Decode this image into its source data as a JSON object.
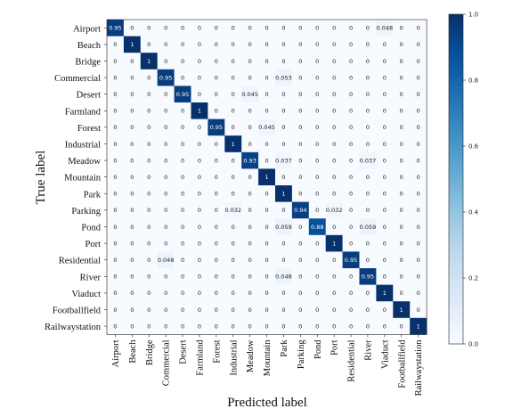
{
  "chart_data": {
    "type": "heatmap",
    "title": "",
    "xlabel": "Predicted label",
    "ylabel": "True label",
    "classes": [
      "Airport",
      "Beach",
      "Bridge",
      "Commercial",
      "Desert",
      "Farmland",
      "Forest",
      "Industrial",
      "Meadow",
      "Mountain",
      "Park",
      "Parking",
      "Pond",
      "Port",
      "Residential",
      "River",
      "Viaduct",
      "Footballfield",
      "Railwaystation"
    ],
    "matrix": [
      [
        "0.95",
        "0",
        "0",
        "0",
        "0",
        "0",
        "0",
        "0",
        "0",
        "0",
        "0",
        "0",
        "0",
        "0",
        "0",
        "0",
        "0.048",
        "0",
        "0"
      ],
      [
        "0",
        "1",
        "0",
        "0",
        "0",
        "0",
        "0",
        "0",
        "0",
        "0",
        "0",
        "0",
        "0",
        "0",
        "0",
        "0",
        "0",
        "0",
        "0"
      ],
      [
        "0",
        "0",
        "1",
        "0",
        "0",
        "0",
        "0",
        "0",
        "0",
        "0",
        "0",
        "0",
        "0",
        "0",
        "0",
        "0",
        "0",
        "0",
        "0"
      ],
      [
        "0",
        "0",
        "0",
        "0.95",
        "0",
        "0",
        "0",
        "0",
        "0",
        "0",
        "0.053",
        "0",
        "0",
        "0",
        "0",
        "0",
        "0",
        "0",
        "0"
      ],
      [
        "0",
        "0",
        "0",
        "0",
        "0.95",
        "0",
        "0",
        "0",
        "0.045",
        "0",
        "0",
        "0",
        "0",
        "0",
        "0",
        "0",
        "0",
        "0",
        "0"
      ],
      [
        "0",
        "0",
        "0",
        "0",
        "0",
        "1",
        "0",
        "0",
        "0",
        "0",
        "0",
        "0",
        "0",
        "0",
        "0",
        "0",
        "0",
        "0",
        "0"
      ],
      [
        "0",
        "0",
        "0",
        "0",
        "0",
        "0",
        "0.95",
        "0",
        "0",
        "0.045",
        "0",
        "0",
        "0",
        "0",
        "0",
        "0",
        "0",
        "0",
        "0"
      ],
      [
        "0",
        "0",
        "0",
        "0",
        "0",
        "0",
        "0",
        "1",
        "0",
        "0",
        "0",
        "0",
        "0",
        "0",
        "0",
        "0",
        "0",
        "0",
        "0"
      ],
      [
        "0",
        "0",
        "0",
        "0",
        "0",
        "0",
        "0",
        "0",
        "0.93",
        "0",
        "0.037",
        "0",
        "0",
        "0",
        "0",
        "0.037",
        "0",
        "0",
        "0"
      ],
      [
        "0",
        "0",
        "0",
        "0",
        "0",
        "0",
        "0",
        "0",
        "0",
        "1",
        "0",
        "0",
        "0",
        "0",
        "0",
        "0",
        "0",
        "0",
        "0"
      ],
      [
        "0",
        "0",
        "0",
        "0",
        "0",
        "0",
        "0",
        "0",
        "0",
        "0",
        "1",
        "0",
        "0",
        "0",
        "0",
        "0",
        "0",
        "0",
        "0"
      ],
      [
        "0",
        "0",
        "0",
        "0",
        "0",
        "0",
        "0",
        "0.032",
        "0",
        "0",
        "0",
        "0.94",
        "0",
        "0.032",
        "0",
        "0",
        "0",
        "0",
        "0"
      ],
      [
        "0",
        "0",
        "0",
        "0",
        "0",
        "0",
        "0",
        "0",
        "0",
        "0",
        "0.059",
        "0",
        "0.88",
        "0",
        "0",
        "0.059",
        "0",
        "0",
        "0"
      ],
      [
        "0",
        "0",
        "0",
        "0",
        "0",
        "0",
        "0",
        "0",
        "0",
        "0",
        "0",
        "0",
        "0",
        "1",
        "0",
        "0",
        "0",
        "0",
        "0"
      ],
      [
        "0",
        "0",
        "0",
        "0.048",
        "0",
        "0",
        "0",
        "0",
        "0",
        "0",
        "0",
        "0",
        "0",
        "0",
        "0.95",
        "0",
        "0",
        "0",
        "0"
      ],
      [
        "0",
        "0",
        "0",
        "0",
        "0",
        "0",
        "0",
        "0",
        "0",
        "0",
        "0.048",
        "0",
        "0",
        "0",
        "0",
        "0.95",
        "0",
        "0",
        "0"
      ],
      [
        "0",
        "0",
        "0",
        "0",
        "0",
        "0",
        "0",
        "0",
        "0",
        "0",
        "0",
        "0",
        "0",
        "0",
        "0",
        "0",
        "1",
        "0",
        "0"
      ],
      [
        "0",
        "0",
        "0",
        "0",
        "0",
        "0",
        "0",
        "0",
        "0",
        "0",
        "0",
        "0",
        "0",
        "0",
        "0",
        "0",
        "0",
        "1",
        "0"
      ],
      [
        "0",
        "0",
        "0",
        "0",
        "0",
        "0",
        "0",
        "0",
        "0",
        "0",
        "0",
        "0",
        "0",
        "0",
        "0",
        "0",
        "0",
        "0",
        "1"
      ]
    ],
    "vmin": 0,
    "vmax": 1,
    "colorbar_ticks": [
      "0.0",
      "0.2",
      "0.4",
      "0.6",
      "0.8",
      "1.0"
    ],
    "colormap": "Blues",
    "colors": {
      "low": "#f7fbff",
      "mid": "#6baed6",
      "high": "#08306b"
    },
    "grid": false,
    "colorbar": "right"
  }
}
